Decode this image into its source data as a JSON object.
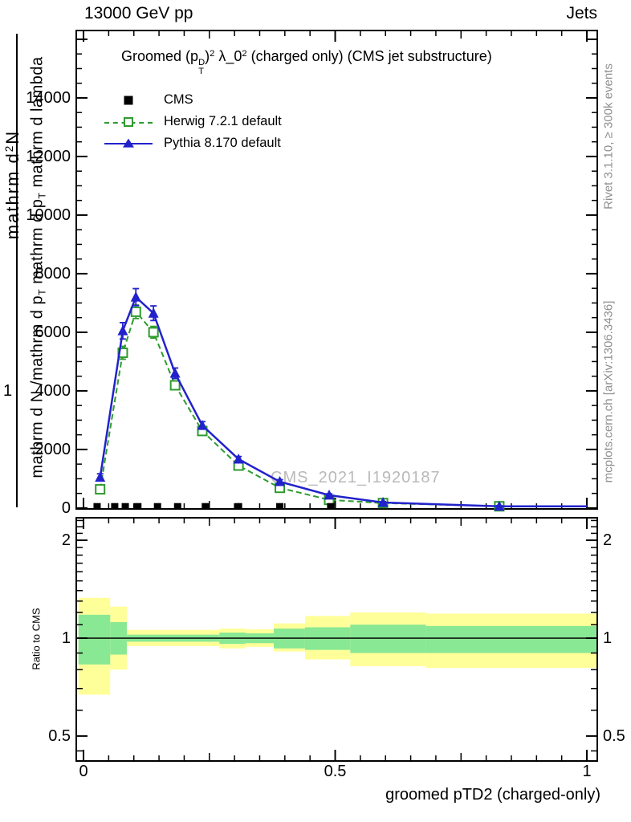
{
  "header": {
    "left": "13000 GeV pp",
    "right": "Jets"
  },
  "main": {
    "title_tokens": [
      {
        "t": "Groomed "
      },
      {
        "t": "("
      },
      {
        "t": "p"
      },
      {
        "m": "stack",
        "t": [
          "D",
          "T"
        ]
      },
      {
        "t": ")"
      },
      {
        "m": "sup",
        "t": "2"
      },
      {
        "t": " λ_0"
      },
      {
        "m": "sup",
        "t": "2"
      },
      {
        "t": "  (charged only) (CMS jet substructure)"
      }
    ],
    "watermark": "CMS_2021_I1920187",
    "legend": {
      "items": [
        {
          "label": "CMS"
        },
        {
          "label": "Herwig 7.2.1 default"
        },
        {
          "label": "Pythia 8.170 default"
        }
      ]
    },
    "ylabel": {
      "one": "1",
      "numerator_tokens": [
        {
          "t": "mathrm d"
        },
        {
          "m": "sup",
          "t": "2"
        },
        {
          "t": "N"
        }
      ],
      "denominator_tokens": [
        {
          "t": "mathrm d N /mathrm d p"
        },
        {
          "m": "sub",
          "t": "T"
        },
        {
          "t": " mathrm d p"
        },
        {
          "m": "sub",
          "t": "T"
        },
        {
          "t": " mathrm d lambda"
        }
      ]
    }
  },
  "xaxis": {
    "label": "groomed pTD2 (charged-only)"
  },
  "ratio": {
    "label": "Ratio to CMS"
  },
  "margin": {
    "rivet": "Rivet 3.1.10, ≥ 300k events",
    "mcplots": "mcplots.cern.ch [arXiv:1306.3436]"
  },
  "colors": {
    "pythia": "#2222cc",
    "herwig": "#2e9b2e",
    "band_yellow": "#ffff99",
    "band_green": "#89e894",
    "watermark": "#b9b9b9",
    "margin_text": "#8f8f8f"
  },
  "chart_data": {
    "type": "line",
    "title": "Groomed (p_T^D)^2 lambda_0^2 (charged only) (CMS jet substructure)",
    "xlabel": "groomed pTD2 (charged-only)",
    "ylabel": "mathrm d^2N / mathrm d N mathrm d p_T mathrm d p_T mathrm d lambda",
    "xlim": [
      -0.0144,
      1.0207
    ],
    "ylim": [
      -30,
      16300
    ],
    "grid": false,
    "legend_position": "top-left",
    "x_ticks": [
      {
        "v": 0,
        "label": "0"
      },
      {
        "v": 0.5,
        "label": "0.5"
      },
      {
        "v": 1,
        "label": "1"
      }
    ],
    "x_minor_step": 0.05,
    "y_ticks": [
      {
        "v": 0,
        "label": "0"
      },
      {
        "v": 2000,
        "label": "2000"
      },
      {
        "v": 4000,
        "label": "4000"
      },
      {
        "v": 6000,
        "label": "6000"
      },
      {
        "v": 8000,
        "label": "8000"
      },
      {
        "v": 10000,
        "label": "10000"
      },
      {
        "v": 12000,
        "label": "12000"
      },
      {
        "v": 14000,
        "label": "14000"
      },
      {
        "v": 16000,
        "label": ""
      }
    ],
    "y_minor_step": 500,
    "series": [
      {
        "name": "CMS",
        "type": "scatter",
        "marker": "square-filled",
        "color": "#000000",
        "x": [
          0.027,
          0.062,
          0.083,
          0.108,
          0.147,
          0.187,
          0.242,
          0.308,
          0.39,
          0.491
        ],
        "y": [
          60,
          60,
          60,
          60,
          60,
          60,
          60,
          60,
          60,
          60
        ]
      },
      {
        "name": "Herwig 7.2.1 default",
        "type": "line",
        "dashed": true,
        "marker": "square-open",
        "color": "#2e9b2e",
        "x": [
          0.033,
          0.078,
          0.104,
          0.139,
          0.182,
          0.236,
          0.308,
          0.39,
          0.488,
          0.595,
          0.826
        ],
        "y": [
          640,
          5300,
          6700,
          6000,
          4190,
          2630,
          1450,
          690,
          280,
          170,
          60
        ],
        "yerr": [
          100,
          220,
          230,
          200,
          150,
          110,
          75,
          55,
          35,
          25,
          15
        ]
      },
      {
        "name": "Pythia 8.170 default",
        "type": "line",
        "dashed": false,
        "marker": "triangle-filled",
        "color": "#2222cc",
        "x": [
          0.033,
          0.078,
          0.104,
          0.139,
          0.182,
          0.236,
          0.308,
          0.39,
          0.488,
          0.595,
          0.826
        ],
        "y": [
          1050,
          6050,
          7200,
          6650,
          4600,
          2820,
          1670,
          900,
          440,
          190,
          60
        ],
        "yerr": [
          120,
          280,
          290,
          250,
          180,
          130,
          90,
          70,
          45,
          30,
          20
        ]
      }
    ],
    "ratio_panel": {
      "ylabel": "Ratio to CMS",
      "scale": "log2",
      "ylim": [
        0.419,
        2.345
      ],
      "unity_line": 1,
      "y_ticks": [
        {
          "v": 0.5,
          "label": "0.5"
        },
        {
          "v": 1,
          "label": "1"
        },
        {
          "v": 2,
          "label": "2"
        }
      ],
      "y_minor": [
        0.45,
        0.6,
        0.7,
        0.8,
        0.9,
        1.1,
        1.2,
        1.3,
        1.4,
        1.5,
        1.6,
        1.7,
        1.8,
        1.9,
        2.1,
        2.2,
        2.3
      ],
      "bands": [
        {
          "x0": -0.01,
          "x1": 0.053,
          "yellow": [
            0.67,
            1.33
          ],
          "green": [
            0.83,
            1.18
          ]
        },
        {
          "x0": 0.053,
          "x1": 0.086,
          "yellow": [
            0.8,
            1.25
          ],
          "green": [
            0.89,
            1.12
          ]
        },
        {
          "x0": 0.086,
          "x1": 0.27,
          "yellow": [
            0.945,
            1.06
          ],
          "green": [
            0.975,
            1.025
          ]
        },
        {
          "x0": 0.27,
          "x1": 0.322,
          "yellow": [
            0.93,
            1.07
          ],
          "green": [
            0.96,
            1.04
          ]
        },
        {
          "x0": 0.322,
          "x1": 0.378,
          "yellow": [
            0.94,
            1.065
          ],
          "green": [
            0.965,
            1.035
          ]
        },
        {
          "x0": 0.378,
          "x1": 0.44,
          "yellow": [
            0.91,
            1.11
          ],
          "green": [
            0.93,
            1.07
          ]
        },
        {
          "x0": 0.44,
          "x1": 0.53,
          "yellow": [
            0.86,
            1.17
          ],
          "green": [
            0.92,
            1.08
          ]
        },
        {
          "x0": 0.53,
          "x1": 0.68,
          "yellow": [
            0.82,
            1.2
          ],
          "green": [
            0.9,
            1.1
          ]
        },
        {
          "x0": 0.68,
          "x1": 1.02,
          "yellow": [
            0.81,
            1.19
          ],
          "green": [
            0.9,
            1.09
          ]
        }
      ]
    }
  }
}
